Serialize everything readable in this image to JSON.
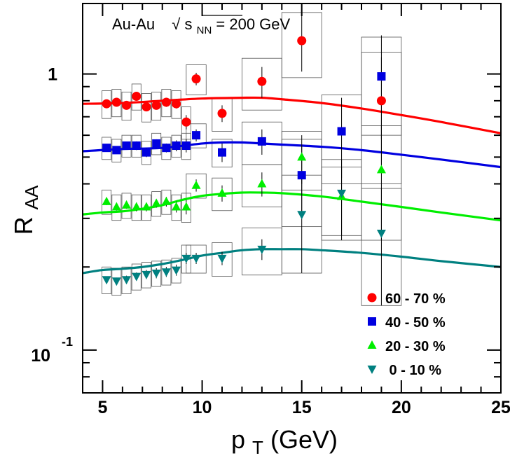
{
  "chart_data": {
    "type": "scatter",
    "title": "",
    "xlabel": {
      "base": "p",
      "sub": "T",
      "rest": " (GeV)"
    },
    "ylabel": {
      "base": "R",
      "sub": "AA"
    },
    "annotation": {
      "system": "Au-Au",
      "sqrt": "√",
      "s": "s",
      "sub": "NN",
      "energy": " = 200 GeV"
    },
    "xlim": [
      4,
      25
    ],
    "ylim": [
      0.07,
      1.8
    ],
    "yscale": "log",
    "grid": false,
    "x_ticks": [
      5,
      10,
      15,
      20,
      25
    ],
    "x_tick_labels": [
      "5",
      "10",
      "15",
      "20",
      "25"
    ],
    "y_tick_labels": [
      {
        "value": 1,
        "base": "1",
        "exp": ""
      },
      {
        "value": 0.1,
        "base": "10",
        "exp": "-1"
      }
    ],
    "legend_placement": "bottom-right",
    "series": [
      {
        "name": "60 - 70 %",
        "color": "#ff0000",
        "marker": "circle",
        "points": [
          {
            "x": 5.2,
            "y": 0.78,
            "err": 0.02,
            "sys": 0.09
          },
          {
            "x": 5.7,
            "y": 0.79,
            "err": 0.02,
            "sys": 0.09
          },
          {
            "x": 6.2,
            "y": 0.77,
            "err": 0.02,
            "sys": 0.09
          },
          {
            "x": 6.7,
            "y": 0.83,
            "err": 0.02,
            "sys": 0.09
          },
          {
            "x": 7.2,
            "y": 0.76,
            "err": 0.025,
            "sys": 0.09
          },
          {
            "x": 7.7,
            "y": 0.77,
            "err": 0.025,
            "sys": 0.09
          },
          {
            "x": 8.2,
            "y": 0.79,
            "err": 0.03,
            "sys": 0.09
          },
          {
            "x": 8.7,
            "y": 0.78,
            "err": 0.03,
            "sys": 0.09
          },
          {
            "x": 9.2,
            "y": 0.67,
            "err": 0.04,
            "sys": 0.09
          },
          {
            "x": 9.7,
            "y": 0.96,
            "err": 0.05,
            "sys": 0.12
          },
          {
            "x": 11.0,
            "y": 0.72,
            "err": 0.05,
            "sys": 0.1
          },
          {
            "x": 13.0,
            "y": 0.94,
            "err": 0.12,
            "sys": 0.2
          },
          {
            "x": 15.0,
            "y": 1.32,
            "err": 0.3,
            "sys": 0.35
          },
          {
            "x": 19.0,
            "y": 0.8,
            "err": 0.35,
            "sys": 0.4
          }
        ]
      },
      {
        "name": "40 - 50 %",
        "color": "#0000e0",
        "marker": "square",
        "points": [
          {
            "x": 5.2,
            "y": 0.54,
            "err": 0.015,
            "sys": 0.05
          },
          {
            "x": 5.7,
            "y": 0.53,
            "err": 0.015,
            "sys": 0.05
          },
          {
            "x": 6.2,
            "y": 0.55,
            "err": 0.015,
            "sys": 0.05
          },
          {
            "x": 6.7,
            "y": 0.55,
            "err": 0.02,
            "sys": 0.05
          },
          {
            "x": 7.2,
            "y": 0.52,
            "err": 0.02,
            "sys": 0.05
          },
          {
            "x": 7.7,
            "y": 0.56,
            "err": 0.02,
            "sys": 0.05
          },
          {
            "x": 8.2,
            "y": 0.54,
            "err": 0.02,
            "sys": 0.05
          },
          {
            "x": 8.7,
            "y": 0.55,
            "err": 0.025,
            "sys": 0.05
          },
          {
            "x": 9.2,
            "y": 0.55,
            "err": 0.03,
            "sys": 0.06
          },
          {
            "x": 9.7,
            "y": 0.6,
            "err": 0.03,
            "sys": 0.06
          },
          {
            "x": 11.0,
            "y": 0.52,
            "err": 0.04,
            "sys": 0.06
          },
          {
            "x": 13.0,
            "y": 0.57,
            "err": 0.06,
            "sys": 0.1
          },
          {
            "x": 15.0,
            "y": 0.43,
            "err": 0.12,
            "sys": 0.15
          },
          {
            "x": 17.0,
            "y": 0.62,
            "err": 0.2,
            "sys": 0.22
          },
          {
            "x": 19.0,
            "y": 0.98,
            "err": 0.4,
            "sys": 0.38
          }
        ]
      },
      {
        "name": "20 - 30 %",
        "color": "#00ee00",
        "marker": "triangle-up",
        "points": [
          {
            "x": 5.2,
            "y": 0.345,
            "err": 0.01,
            "sys": 0.035
          },
          {
            "x": 5.7,
            "y": 0.33,
            "err": 0.01,
            "sys": 0.035
          },
          {
            "x": 6.2,
            "y": 0.335,
            "err": 0.01,
            "sys": 0.035
          },
          {
            "x": 6.7,
            "y": 0.33,
            "err": 0.012,
            "sys": 0.035
          },
          {
            "x": 7.2,
            "y": 0.33,
            "err": 0.012,
            "sys": 0.035
          },
          {
            "x": 7.7,
            "y": 0.34,
            "err": 0.012,
            "sys": 0.035
          },
          {
            "x": 8.2,
            "y": 0.345,
            "err": 0.014,
            "sys": 0.035
          },
          {
            "x": 8.7,
            "y": 0.33,
            "err": 0.015,
            "sys": 0.035
          },
          {
            "x": 9.2,
            "y": 0.33,
            "err": 0.02,
            "sys": 0.04
          },
          {
            "x": 9.7,
            "y": 0.395,
            "err": 0.02,
            "sys": 0.04
          },
          {
            "x": 11.0,
            "y": 0.37,
            "err": 0.025,
            "sys": 0.05
          },
          {
            "x": 13.0,
            "y": 0.4,
            "err": 0.04,
            "sys": 0.07
          },
          {
            "x": 15.0,
            "y": 0.5,
            "err": 0.1,
            "sys": 0.12
          },
          {
            "x": 17.0,
            "y": 0.36,
            "err": 0.1,
            "sys": 0.1
          },
          {
            "x": 19.0,
            "y": 0.45,
            "err": 0.2,
            "sys": 0.2
          }
        ]
      },
      {
        "name": "0 - 10 %",
        "color": "#008080",
        "marker": "triangle-down",
        "points": [
          {
            "x": 5.2,
            "y": 0.18,
            "err": 0.005,
            "sys": 0.02
          },
          {
            "x": 5.7,
            "y": 0.178,
            "err": 0.005,
            "sys": 0.02
          },
          {
            "x": 6.2,
            "y": 0.18,
            "err": 0.006,
            "sys": 0.02
          },
          {
            "x": 6.7,
            "y": 0.185,
            "err": 0.006,
            "sys": 0.02
          },
          {
            "x": 7.2,
            "y": 0.188,
            "err": 0.007,
            "sys": 0.02
          },
          {
            "x": 7.7,
            "y": 0.19,
            "err": 0.008,
            "sys": 0.02
          },
          {
            "x": 8.2,
            "y": 0.192,
            "err": 0.008,
            "sys": 0.02
          },
          {
            "x": 8.7,
            "y": 0.195,
            "err": 0.009,
            "sys": 0.02
          },
          {
            "x": 9.2,
            "y": 0.215,
            "err": 0.01,
            "sys": 0.025
          },
          {
            "x": 9.7,
            "y": 0.215,
            "err": 0.01,
            "sys": 0.025
          },
          {
            "x": 11.0,
            "y": 0.215,
            "err": 0.012,
            "sys": 0.03
          },
          {
            "x": 13.0,
            "y": 0.232,
            "err": 0.02,
            "sys": 0.045
          },
          {
            "x": 15.0,
            "y": 0.31,
            "err": 0.12,
            "sys": 0.12
          },
          {
            "x": 17.0,
            "y": 0.37,
            "err": 0.12,
            "sys": 0.12
          },
          {
            "x": 19.0,
            "y": 0.265,
            "err": 0.12,
            "sys": 0.12
          }
        ]
      }
    ],
    "model_curves": [
      {
        "color": "#ff0000",
        "x": [
          4,
          6,
          8,
          10,
          12,
          13,
          14,
          16,
          18,
          20,
          22,
          25
        ],
        "y": [
          0.78,
          0.785,
          0.8,
          0.815,
          0.82,
          0.82,
          0.81,
          0.785,
          0.75,
          0.71,
          0.67,
          0.61
        ]
      },
      {
        "color": "#0000e0",
        "x": [
          4,
          6,
          8,
          10,
          11,
          12,
          13,
          14,
          16,
          18,
          20,
          22,
          25
        ],
        "y": [
          0.525,
          0.535,
          0.54,
          0.56,
          0.565,
          0.565,
          0.56,
          0.555,
          0.545,
          0.53,
          0.51,
          0.49,
          0.46
        ]
      },
      {
        "color": "#00ee00",
        "x": [
          4,
          5,
          6,
          7,
          8,
          9,
          10,
          11,
          12,
          13,
          14,
          16,
          18,
          20,
          22,
          25
        ],
        "y": [
          0.31,
          0.315,
          0.318,
          0.325,
          0.335,
          0.35,
          0.362,
          0.368,
          0.372,
          0.372,
          0.37,
          0.36,
          0.345,
          0.33,
          0.315,
          0.295
        ]
      },
      {
        "color": "#008080",
        "x": [
          4,
          5,
          6,
          7,
          8,
          9,
          10,
          11,
          12,
          13,
          14,
          15,
          16,
          18,
          20,
          22,
          25
        ],
        "y": [
          0.19,
          0.195,
          0.197,
          0.2,
          0.205,
          0.212,
          0.22,
          0.225,
          0.23,
          0.232,
          0.232,
          0.232,
          0.23,
          0.225,
          0.218,
          0.21,
          0.2
        ]
      }
    ]
  }
}
